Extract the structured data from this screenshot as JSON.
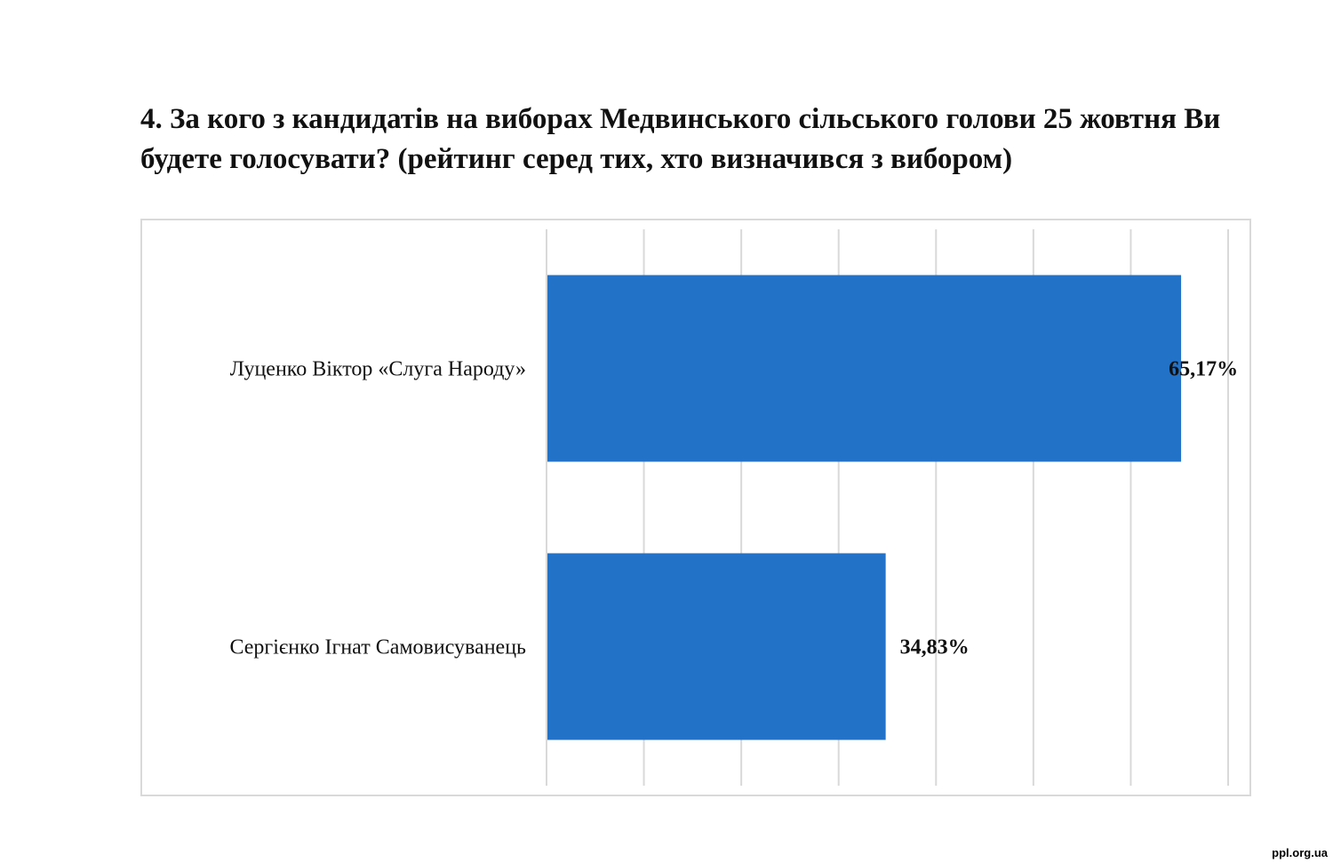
{
  "title": "4. За кого з кандидатів на виборах Медвинського сільського голови 25 жовтня Ви будете голосувати? (рейтинг серед тих, хто визначився з вибором)",
  "watermark": "ppl.org.ua",
  "chart_data": {
    "type": "bar",
    "orientation": "horizontal",
    "title": "4. За кого з кандидатів на виборах Медвинського сільського голови 25 жовтня Ви будете голосувати? (рейтинг серед тих, хто визначився з вибором)",
    "categories": [
      "Луценко Віктор «Слуга Народу»",
      "Сергієнко Ігнат  Самовисуванець"
    ],
    "values": [
      65.17,
      34.83
    ],
    "data_labels": [
      "65,17%",
      "34,83%"
    ],
    "xlim": [
      0,
      70
    ],
    "grid": true,
    "bar_color": "#2272c8",
    "grid_color": "#d9d9d9"
  }
}
